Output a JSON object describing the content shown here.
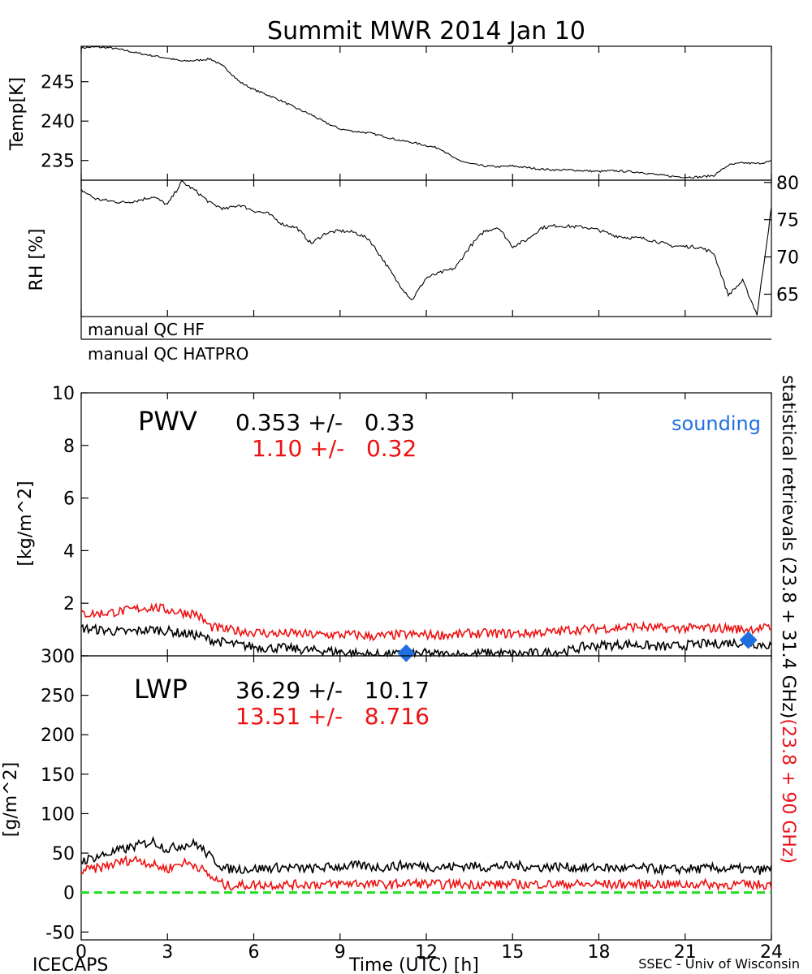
{
  "title": "Summit MWR 2014 Jan 10",
  "footer": {
    "left": "ICECAPS",
    "right": "SSEC - Univ of Wisconsin"
  },
  "x_axis": {
    "label": "Time (UTC) [h]",
    "range": [
      0,
      24
    ],
    "ticks": [
      0,
      3,
      6,
      9,
      12,
      15,
      18,
      21,
      24
    ]
  },
  "qc_labels": [
    "manual QC HF",
    "manual QC HATPRO"
  ],
  "side_label": {
    "black": "statistical retrievals (23.8 + 31.4 GHz)",
    "red": "(23.8 + 90 GHz)",
    "red_color": "#e8141e"
  },
  "colors": {
    "black": "#000000",
    "red": "#ee1111",
    "blue": "#1f6fe0",
    "green": "#22dd22"
  },
  "chart_data": [
    {
      "type": "line",
      "ylabel": "Temp[K]",
      "xlim": [
        0,
        24
      ],
      "ylim": [
        232.5,
        249.5
      ],
      "yticks": [
        235,
        240,
        245
      ],
      "x": [
        0,
        0.5,
        1,
        1.5,
        2,
        2.5,
        3,
        3.5,
        4,
        4.5,
        5,
        5.5,
        6,
        6.5,
        7,
        7.5,
        8,
        8.5,
        9,
        9.5,
        10,
        10.5,
        11,
        11.5,
        12,
        12.5,
        13,
        13.5,
        14,
        14.5,
        15,
        15.5,
        16,
        16.5,
        17,
        17.5,
        18,
        18.5,
        19,
        19.5,
        20,
        20.5,
        21,
        21.5,
        22,
        22.5,
        23,
        23.5,
        24
      ],
      "series": [
        {
          "values": [
            249.3,
            249.4,
            249.3,
            249.0,
            248.6,
            248.3,
            248.0,
            247.6,
            247.7,
            247.9,
            246.8,
            245.0,
            244.0,
            243.3,
            242.5,
            241.6,
            240.8,
            239.8,
            239.0,
            238.7,
            238.5,
            238.1,
            237.6,
            237.3,
            236.9,
            236.5,
            235.2,
            234.6,
            234.3,
            234.2,
            234.3,
            234.1,
            233.9,
            233.8,
            233.8,
            233.7,
            233.6,
            233.7,
            233.6,
            233.5,
            233.2,
            233.0,
            232.9,
            232.9,
            233.1,
            234.4,
            234.7,
            234.6,
            234.9
          ],
          "color": "#000000"
        }
      ]
    },
    {
      "type": "line",
      "ylabel": "RH [%]",
      "xlim": [
        0,
        24
      ],
      "ylim": [
        62,
        80.3
      ],
      "yticks": [
        65,
        70,
        75,
        80
      ],
      "x": [
        0,
        0.5,
        1,
        1.5,
        2,
        2.5,
        3,
        3.5,
        4,
        4.5,
        5,
        5.5,
        6,
        6.5,
        7,
        7.5,
        8,
        8.5,
        9,
        9.5,
        10,
        10.5,
        11,
        11.5,
        12,
        12.5,
        13,
        13.5,
        14,
        14.5,
        15,
        15.5,
        16,
        16.5,
        17,
        17.5,
        18,
        18.5,
        19,
        19.5,
        20,
        20.5,
        21,
        21.5,
        22,
        22.5,
        23,
        23.5,
        24
      ],
      "series": [
        {
          "values": [
            79,
            77.8,
            77.5,
            77.3,
            77.6,
            78.1,
            77.0,
            80.1,
            78.8,
            77.2,
            76.4,
            77.0,
            76.2,
            75.8,
            74.4,
            73.9,
            71.8,
            73.2,
            73.5,
            73.3,
            72.4,
            69.6,
            66.6,
            64.2,
            67.2,
            67.9,
            68.5,
            71.3,
            73.4,
            74.0,
            71.4,
            72.3,
            73.9,
            74.2,
            74.1,
            74.0,
            73.6,
            72.9,
            72.6,
            72.5,
            72.1,
            71.5,
            71.4,
            71.3,
            70.5,
            64.9,
            66.8,
            62.3,
            76.6
          ],
          "color": "#000000"
        }
      ]
    },
    {
      "type": "line",
      "name": "PWV",
      "ylabel": "[kg/m^2]",
      "xlim": [
        0,
        24
      ],
      "ylim": [
        0,
        10
      ],
      "yticks": [
        0,
        2,
        4,
        6,
        8,
        10
      ],
      "annotation": "PWV",
      "stats": [
        {
          "text": "0.353 +/-   0.33",
          "color": "#000000"
        },
        {
          "text": "1.10 +/-   0.32",
          "color": "#ee1111"
        }
      ],
      "sounding_label": "sounding",
      "x": [
        0,
        0.5,
        1,
        1.5,
        2,
        2.5,
        3,
        3.5,
        4,
        4.5,
        5,
        5.5,
        6,
        6.5,
        7,
        7.5,
        8,
        8.5,
        9,
        9.5,
        10,
        10.5,
        11,
        11.5,
        12,
        12.5,
        13,
        13.5,
        14,
        14.5,
        15,
        15.5,
        16,
        16.5,
        17,
        17.5,
        18,
        18.5,
        19,
        19.5,
        20,
        20.5,
        21,
        21.5,
        22,
        22.5,
        23,
        23.5,
        24
      ],
      "series": [
        {
          "values": [
            1.05,
            1.0,
            0.95,
            0.9,
            0.95,
            1.0,
            0.95,
            0.85,
            0.8,
            0.6,
            0.5,
            0.4,
            0.35,
            0.3,
            0.3,
            0.25,
            0.2,
            0.2,
            0.15,
            0.1,
            0.05,
            0.05,
            0.05,
            0.05,
            0.1,
            0.05,
            0.05,
            0.05,
            0.1,
            0.1,
            0.05,
            0.1,
            0.1,
            0.15,
            0.2,
            0.35,
            0.4,
            0.4,
            0.45,
            0.4,
            0.35,
            0.35,
            0.4,
            0.45,
            0.45,
            0.5,
            0.5,
            0.45,
            0.4
          ],
          "color": "#000000"
        },
        {
          "values": [
            1.6,
            1.6,
            1.65,
            1.7,
            1.8,
            1.85,
            1.75,
            1.65,
            1.6,
            1.1,
            1.0,
            0.95,
            0.9,
            0.85,
            0.85,
            0.85,
            0.8,
            0.8,
            0.8,
            0.8,
            0.75,
            0.75,
            0.8,
            0.8,
            0.8,
            0.8,
            0.8,
            0.85,
            0.85,
            0.85,
            0.85,
            0.85,
            0.9,
            0.9,
            1.0,
            1.0,
            1.05,
            1.05,
            1.1,
            1.1,
            1.05,
            1.05,
            1.05,
            1.05,
            1.05,
            1.05,
            1.0,
            1.05,
            1.05
          ],
          "color": "#ee1111"
        }
      ],
      "soundings": [
        {
          "x": 11.3,
          "y": 0.1
        },
        {
          "x": 23.2,
          "y": 0.6
        }
      ]
    },
    {
      "type": "line",
      "name": "LWP",
      "ylabel": "[g/m^2]",
      "xlim": [
        0,
        24
      ],
      "ylim": [
        -60,
        300
      ],
      "yticks": [
        -50,
        0,
        50,
        100,
        150,
        200,
        250,
        300
      ],
      "annotation": "LWP",
      "stats": [
        {
          "text": "36.29 +/-   10.17",
          "color": "#000000"
        },
        {
          "text": "13.51 +/-   8.716",
          "color": "#ee1111"
        }
      ],
      "zero_line": 0,
      "x": [
        0,
        0.5,
        1,
        1.5,
        2,
        2.5,
        3,
        3.5,
        4,
        4.5,
        5,
        5.5,
        6,
        6.5,
        7,
        7.5,
        8,
        8.5,
        9,
        9.5,
        10,
        10.5,
        11,
        11.5,
        12,
        12.5,
        13,
        13.5,
        14,
        14.5,
        15,
        15.5,
        16,
        16.5,
        17,
        17.5,
        18,
        18.5,
        19,
        19.5,
        20,
        20.5,
        21,
        21.5,
        22,
        22.5,
        23,
        23.5,
        24
      ],
      "series": [
        {
          "values": [
            40,
            45,
            50,
            55,
            60,
            65,
            55,
            60,
            62,
            45,
            30,
            30,
            30,
            31,
            32,
            31,
            30,
            32,
            33,
            34,
            33,
            32,
            34,
            35,
            33,
            32,
            33,
            34,
            32,
            33,
            34,
            33,
            32,
            33,
            32,
            31,
            32,
            31,
            30,
            31,
            30,
            29,
            30,
            30,
            31,
            30,
            30,
            28,
            30
          ],
          "color": "#000000"
        },
        {
          "values": [
            28,
            30,
            35,
            40,
            42,
            35,
            30,
            38,
            35,
            20,
            9,
            9,
            10,
            10,
            10,
            10,
            11,
            10,
            11,
            12,
            11,
            10,
            11,
            12,
            11,
            10,
            11,
            10,
            11,
            10,
            11,
            10,
            11,
            10,
            11,
            10,
            11,
            10,
            11,
            10,
            11,
            10,
            10,
            11,
            10,
            10,
            10,
            10,
            10
          ],
          "color": "#ee1111"
        }
      ]
    }
  ]
}
